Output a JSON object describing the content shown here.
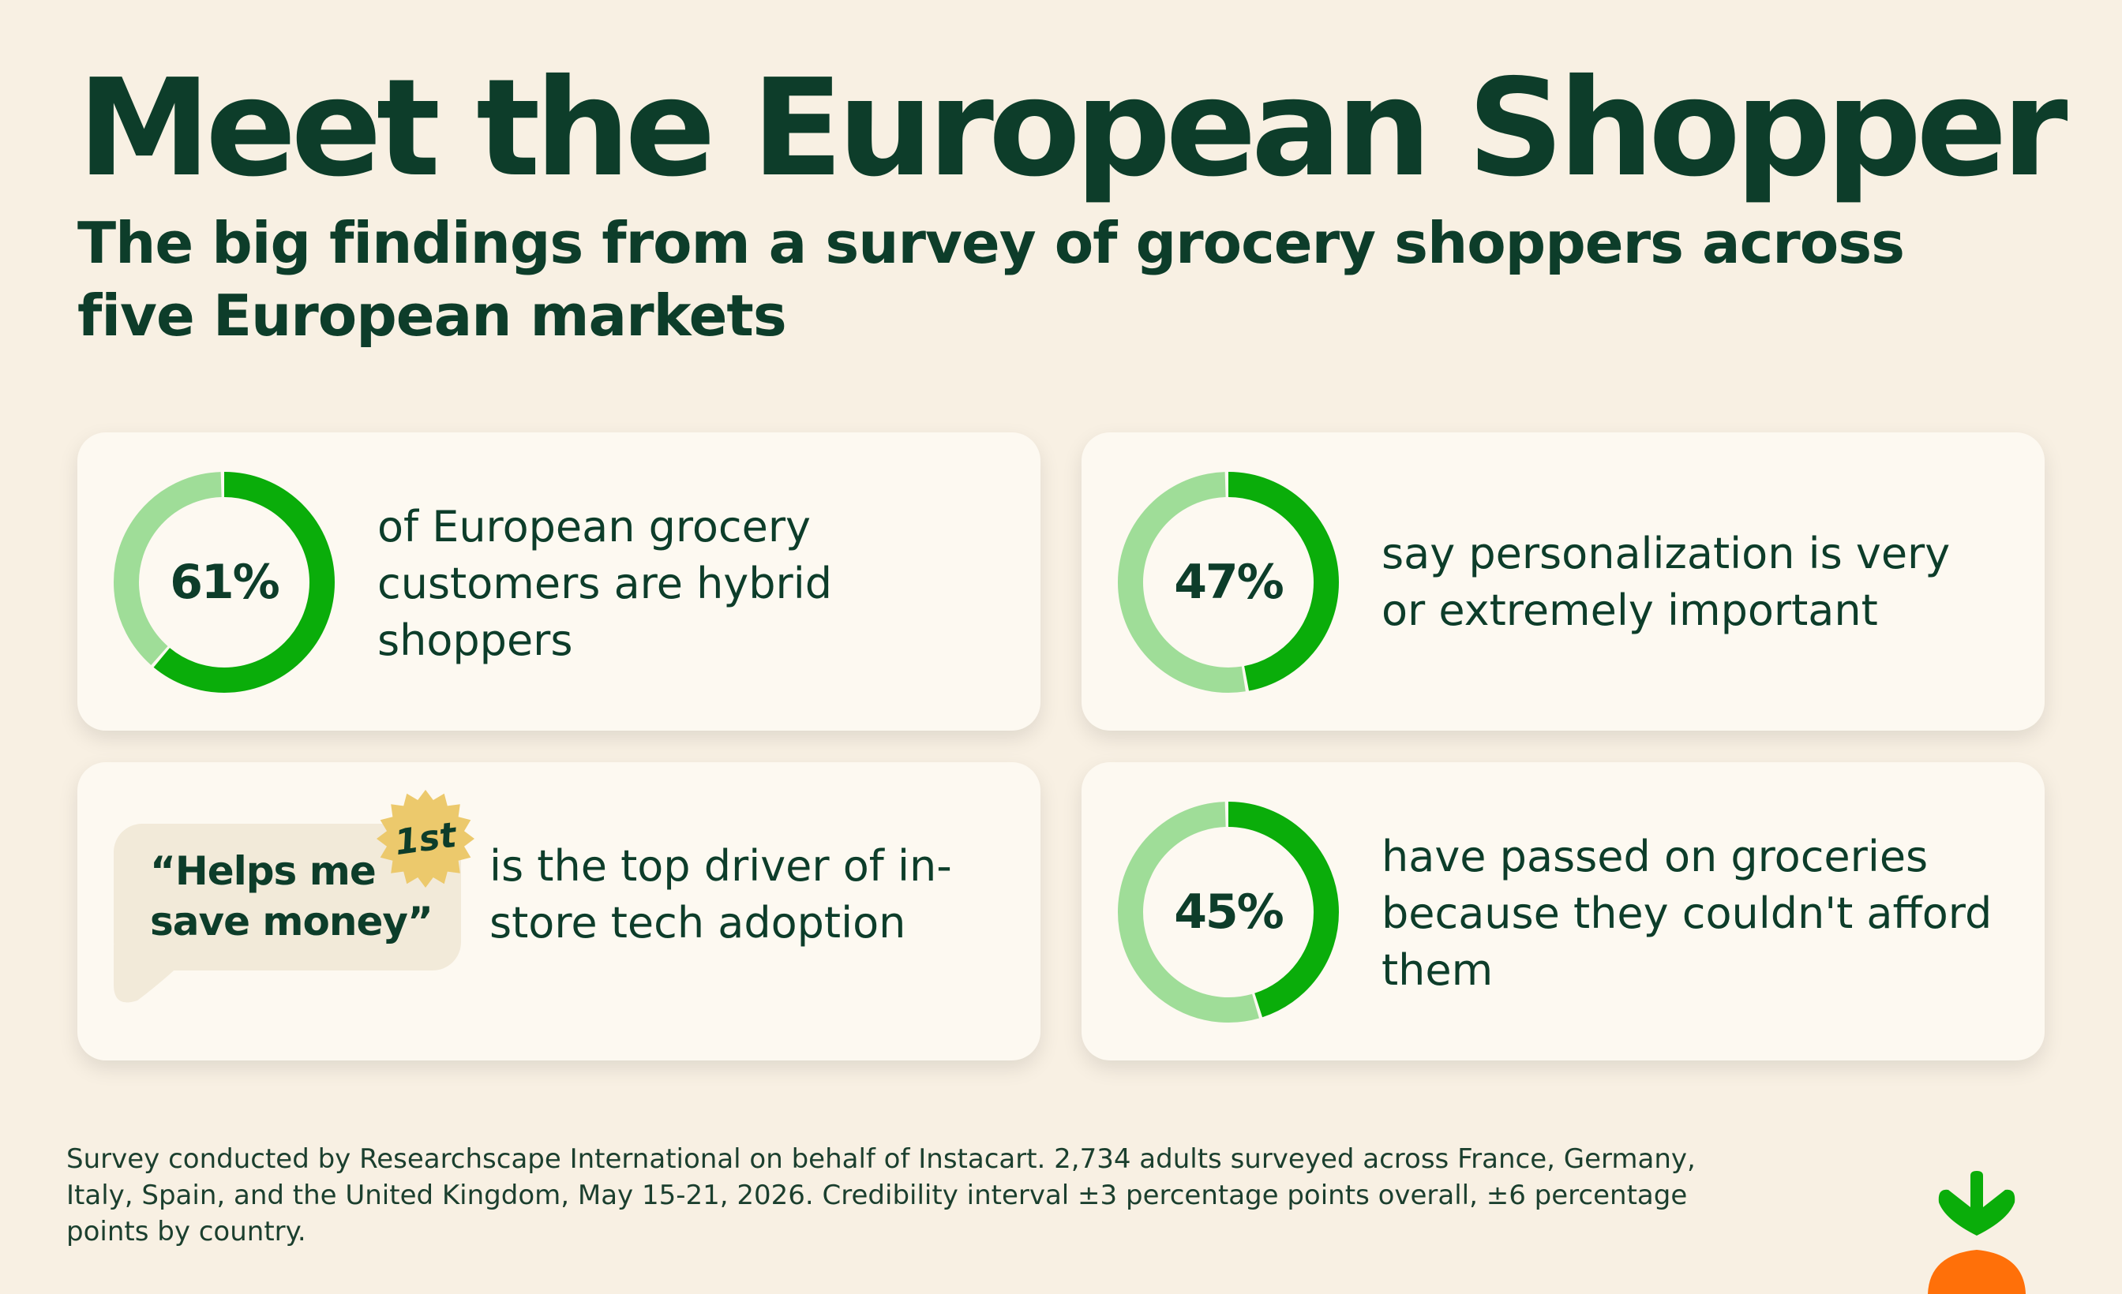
{
  "title": "Meet the European Shopper",
  "subtitle": "The big findings from a survey of grocery shoppers across five European markets",
  "colors": {
    "background": "#f8f0e3",
    "card": "#fdf9f1",
    "text": "#0d3d2a",
    "ring_fill": "#0aad0a",
    "ring_track": "#9fdd98",
    "badge": "#ecc96c",
    "bubble": "#f2ead9",
    "logo_leaf": "#0aad0a",
    "logo_carrot": "#ff7009"
  },
  "stats": [
    {
      "value": 61,
      "label": "61%",
      "text": "of European grocery customers are hybrid shoppers"
    },
    {
      "value": 47,
      "label": "47%",
      "text": "say personalization is very or extremely important"
    },
    {
      "value": 45,
      "label": "45%",
      "text": "have passed on groceries because they couldn't afford them"
    }
  ],
  "quote_card": {
    "quote": "“Helps me save money”",
    "badge": "1st",
    "text": "is the top driver of in-store tech adoption"
  },
  "footnote": "Survey conducted by Researchscape International on behalf of Instacart. 2,734 adults surveyed across France, Germany, Italy, Spain, and the United Kingdom, May 15-21, 2026. Credibility interval ±3 percentage points overall, ±6 percentage points by country.",
  "logo_icon": "carrot-logo-icon"
}
